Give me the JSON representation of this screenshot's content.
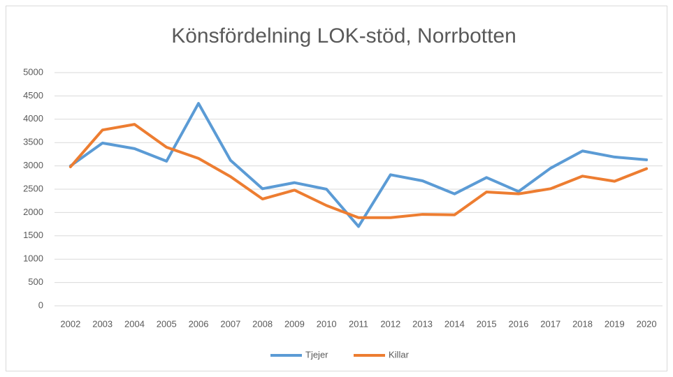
{
  "chart_data": {
    "type": "line",
    "title": "Könsfördelning LOK-stöd, Norrbotten",
    "categories": [
      "2002",
      "2003",
      "2004",
      "2005",
      "2006",
      "2007",
      "2008",
      "2009",
      "2010",
      "2011",
      "2012",
      "2013",
      "2014",
      "2015",
      "2016",
      "2017",
      "2018",
      "2019",
      "2020"
    ],
    "series": [
      {
        "name": "Tjejer",
        "color": "#5b9bd5",
        "values": [
          3000,
          3490,
          3370,
          3100,
          4340,
          3120,
          2510,
          2640,
          2500,
          1700,
          2810,
          2680,
          2400,
          2750,
          2450,
          2950,
          3320,
          3190,
          3130
        ]
      },
      {
        "name": "Killar",
        "color": "#ed7d31",
        "values": [
          2980,
          3770,
          3890,
          3400,
          3160,
          2770,
          2290,
          2480,
          2150,
          1890,
          1890,
          1960,
          1950,
          2440,
          2400,
          2510,
          2780,
          2670,
          2940
        ]
      }
    ],
    "ylim": [
      0,
      5000
    ],
    "yticks": [
      0,
      500,
      1000,
      1500,
      2000,
      2500,
      3000,
      3500,
      4000,
      4500,
      5000
    ],
    "grid": true,
    "legend": "bottom"
  }
}
